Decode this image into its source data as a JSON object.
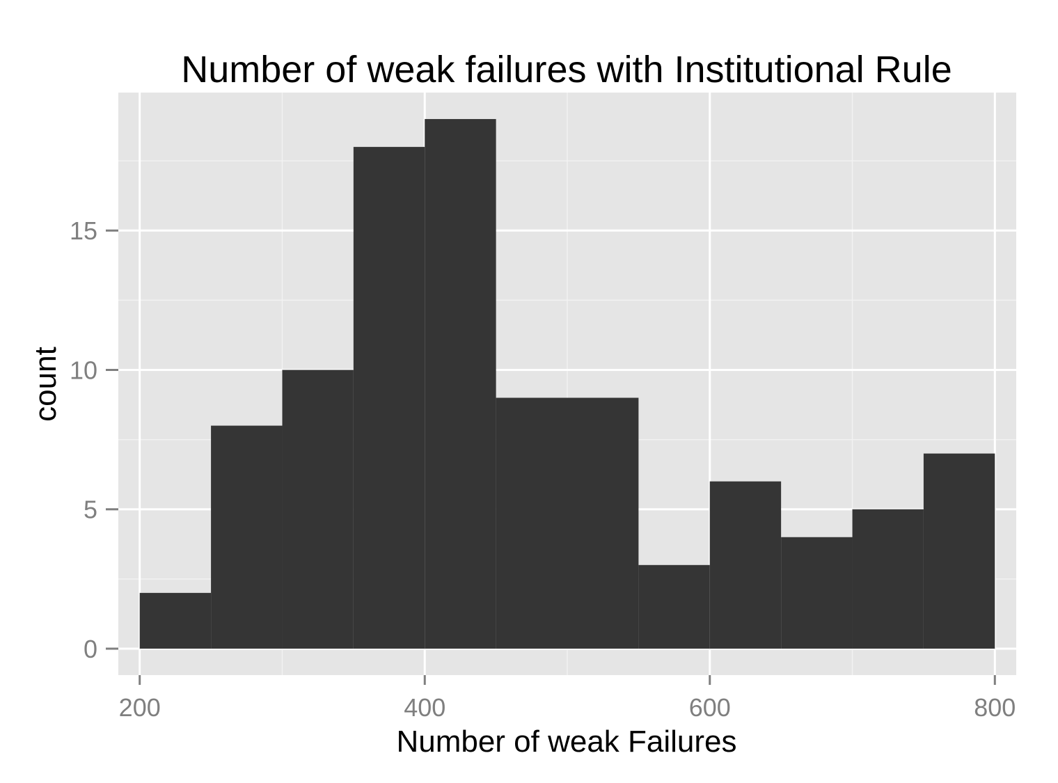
{
  "chart_data": {
    "type": "bar",
    "subtype": "histogram",
    "title": "Number of weak failures with Institutional Rule",
    "xlabel": "Number of weak Failures",
    "ylabel": "count",
    "bins": [
      {
        "start": 200,
        "end": 250,
        "count": 2
      },
      {
        "start": 250,
        "end": 300,
        "count": 8
      },
      {
        "start": 300,
        "end": 350,
        "count": 10
      },
      {
        "start": 350,
        "end": 400,
        "count": 18
      },
      {
        "start": 400,
        "end": 450,
        "count": 19
      },
      {
        "start": 450,
        "end": 500,
        "count": 9
      },
      {
        "start": 500,
        "end": 550,
        "count": 9
      },
      {
        "start": 550,
        "end": 600,
        "count": 3
      },
      {
        "start": 600,
        "end": 650,
        "count": 6
      },
      {
        "start": 650,
        "end": 700,
        "count": 4
      },
      {
        "start": 700,
        "end": 750,
        "count": 5
      },
      {
        "start": 750,
        "end": 800,
        "count": 7
      }
    ],
    "xlim": [
      185,
      815
    ],
    "ylim": [
      -0.95,
      19.95
    ],
    "x_ticks": [
      200,
      400,
      600,
      800
    ],
    "x_tick_labels": [
      "200",
      "400",
      "600",
      "800"
    ],
    "x_minor_ticks": [
      300,
      500,
      700
    ],
    "y_ticks": [
      0,
      5,
      10,
      15
    ],
    "y_tick_labels": [
      "0",
      "5",
      "10",
      "15"
    ],
    "y_minor_ticks": [
      2.5,
      7.5,
      12.5,
      17.5
    ],
    "grid": true,
    "legend": "none",
    "colors": {
      "bar_fill": "#353535",
      "panel_background": "#e5e5e5",
      "grid_major": "#ffffff",
      "grid_minor": "#f2f2f2",
      "tick_label": "#7f7f7f"
    }
  }
}
